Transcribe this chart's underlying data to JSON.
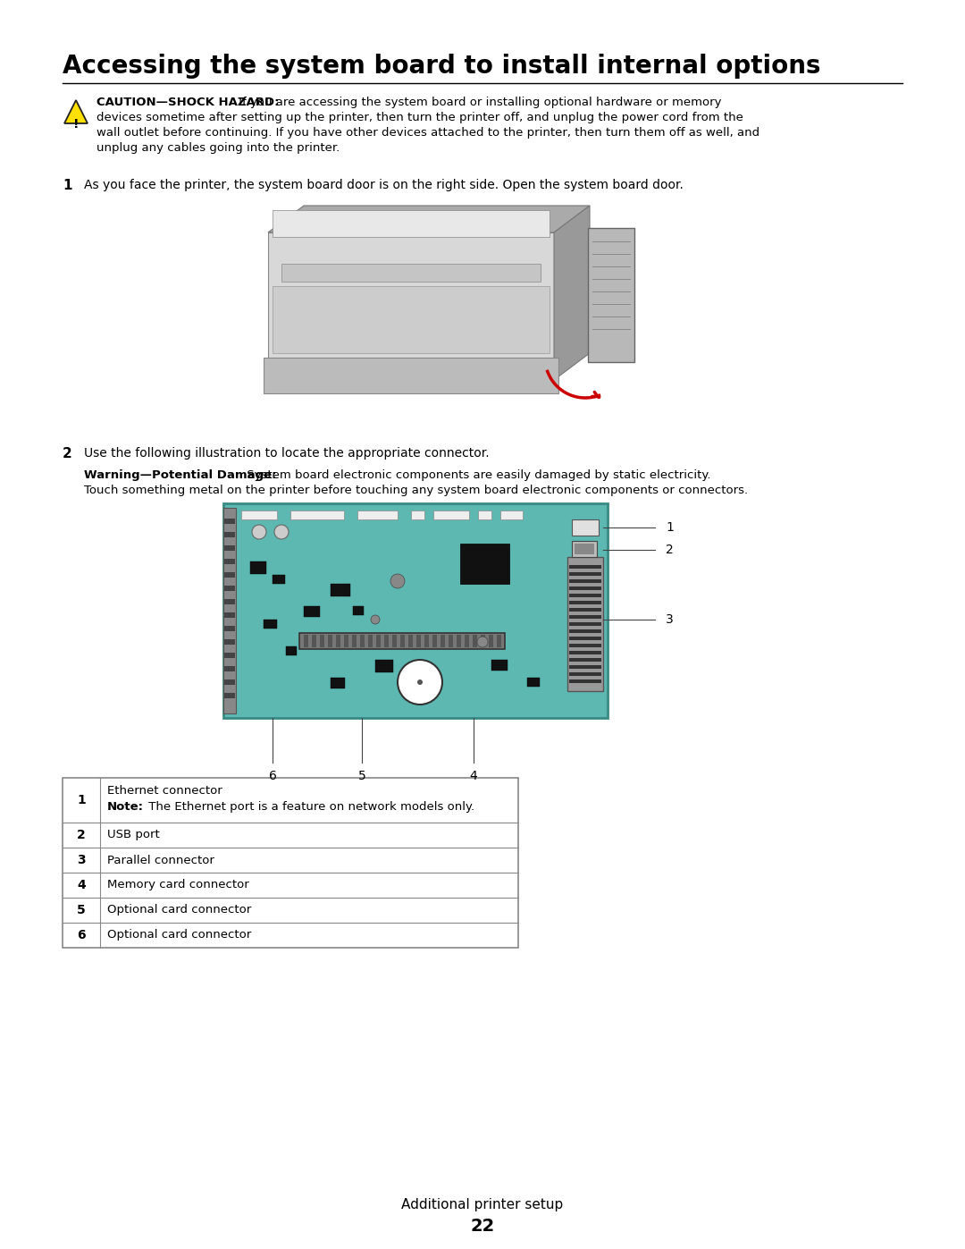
{
  "title": "Accessing the system board to install internal options",
  "bg_color": "#ffffff",
  "title_fontsize": 20,
  "caution_label": "CAUTION—SHOCK HAZARD:",
  "caution_text_line1": " If you are accessing the system board or installing optional hardware or memory",
  "caution_text_line2": "devices sometime after setting up the printer, then turn the printer off, and unplug the power cord from the",
  "caution_text_line3": "wall outlet before continuing. If you have other devices attached to the printer, then turn them off as well, and",
  "caution_text_line4": "unplug any cables going into the printer.",
  "step1_num": "1",
  "step1_text": "As you face the printer, the system board door is on the right side. Open the system board door.",
  "step2_num": "2",
  "step2_text": "Use the following illustration to locate the appropriate connector.",
  "warning_label": "Warning—Potential Damage:",
  "warning_text_line1": " System board electronic components are easily damaged by static electricity.",
  "warning_text_line2": "Touch something metal on the printer before touching any system board electronic components or connectors.",
  "table_rows": [
    [
      "1",
      "Ethernet connector",
      "Note:",
      " The Ethernet port is a feature on network models only."
    ],
    [
      "2",
      "USB port",
      "",
      ""
    ],
    [
      "3",
      "Parallel connector",
      "",
      ""
    ],
    [
      "4",
      "Memory card connector",
      "",
      ""
    ],
    [
      "5",
      "Optional card connector",
      "",
      ""
    ],
    [
      "6",
      "Optional card connector",
      "",
      ""
    ]
  ],
  "footer_text": "Additional printer setup",
  "page_num": "22",
  "board_color": "#5DB8B2",
  "board_edge_color": "#3A8A84"
}
